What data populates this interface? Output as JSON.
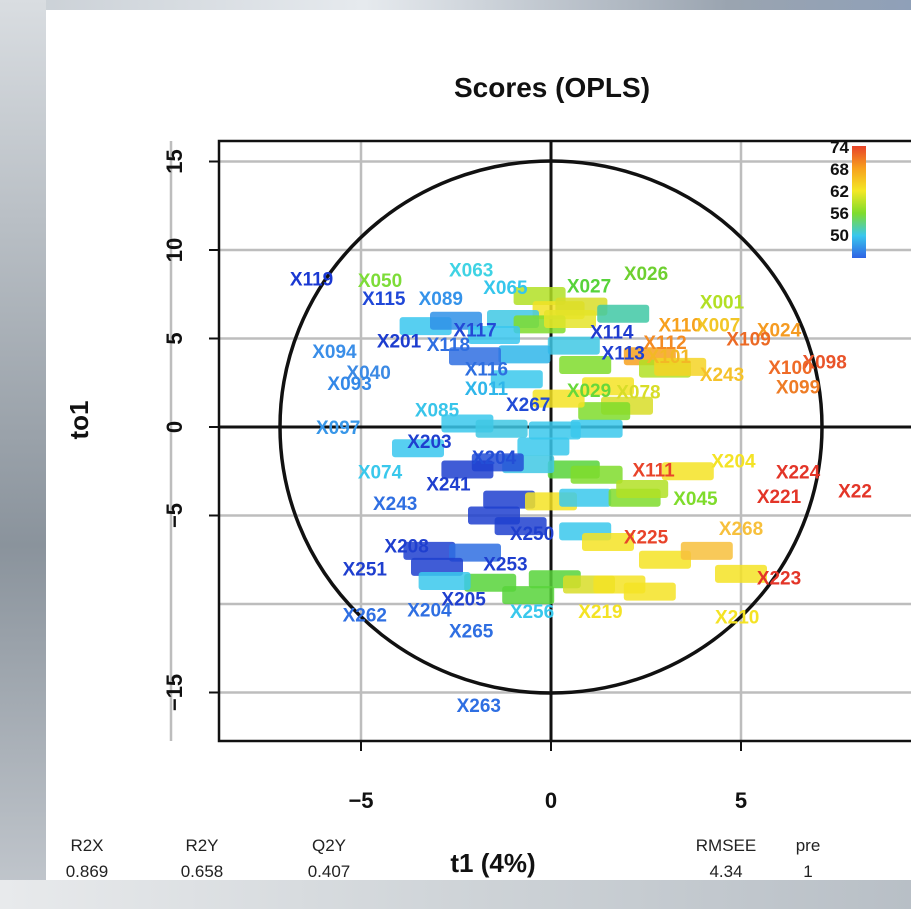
{
  "chart_data": {
    "type": "scatter",
    "title": "Scores (OPLS)",
    "xlabel": "t1 (4%)",
    "ylabel": "to1",
    "xlim": [
      -8.3,
      8.3
    ],
    "ylim": [
      -16.7,
      15.3
    ],
    "xticks": [
      "−5",
      "0",
      "5"
    ],
    "yticks": [
      "15",
      "10",
      "5",
      "0",
      "−5",
      "−15"
    ],
    "grid": true,
    "ellipse": true,
    "colorbar": {
      "position": "top-right",
      "labels": [
        "74",
        "68",
        "62",
        "56",
        "50"
      ],
      "colors": [
        "#e8432a",
        "#f7a11e",
        "#f4e825",
        "#7fdc2c",
        "#39c7ee",
        "#2f63e4"
      ]
    },
    "points": [
      {
        "label": "X119",
        "x": -6.3,
        "y": 8.4,
        "c": "#1a38d2"
      },
      {
        "label": "X050",
        "x": -4.5,
        "y": 8.3,
        "c": "#7ddc38"
      },
      {
        "label": "X063",
        "x": -2.1,
        "y": 8.9,
        "c": "#3fd3e4"
      },
      {
        "label": "X027",
        "x": 1.0,
        "y": 8.0,
        "c": "#57d33a"
      },
      {
        "label": "X026",
        "x": 2.5,
        "y": 8.7,
        "c": "#6ed030"
      },
      {
        "label": "X001",
        "x": 4.5,
        "y": 7.1,
        "c": "#b2e024"
      },
      {
        "label": "X115",
        "x": -4.4,
        "y": 7.3,
        "c": "#1f47d8"
      },
      {
        "label": "X089",
        "x": -2.9,
        "y": 7.3,
        "c": "#3593ea"
      },
      {
        "label": "X065",
        "x": -1.2,
        "y": 7.9,
        "c": "#35c6ec"
      },
      {
        "label": "X201",
        "x": -4.0,
        "y": 4.9,
        "c": "#1c3ccf"
      },
      {
        "label": "X117",
        "x": -2.0,
        "y": 5.5,
        "c": "#244ad6"
      },
      {
        "label": "X118",
        "x": -2.7,
        "y": 4.7,
        "c": "#2f6fe2"
      },
      {
        "label": "X094",
        "x": -5.7,
        "y": 4.3,
        "c": "#3a8ee8"
      },
      {
        "label": "X040",
        "x": -4.8,
        "y": 3.1,
        "c": "#3c8ae4"
      },
      {
        "label": "X093",
        "x": -5.3,
        "y": 2.5,
        "c": "#3388e8"
      },
      {
        "label": "X114",
        "x": 1.6,
        "y": 5.4,
        "c": "#1f3bd0"
      },
      {
        "label": "X113",
        "x": 1.9,
        "y": 4.2,
        "c": "#2140d2"
      },
      {
        "label": "X116",
        "x": -1.7,
        "y": 3.3,
        "c": "#2e6fe0"
      },
      {
        "label": "X110",
        "x": 3.4,
        "y": 5.8,
        "c": "#f7a11e"
      },
      {
        "label": "X007",
        "x": 4.4,
        "y": 5.8,
        "c": "#f2c627"
      },
      {
        "label": "X112",
        "x": 3.0,
        "y": 4.8,
        "c": "#f48b22"
      },
      {
        "label": "X024",
        "x": 6.0,
        "y": 5.5,
        "c": "#f59b21"
      },
      {
        "label": "X109",
        "x": 5.2,
        "y": 5.0,
        "c": "#ec6a25"
      },
      {
        "label": "X101",
        "x": 3.1,
        "y": 4.0,
        "c": "#f3b825"
      },
      {
        "label": "X098",
        "x": 7.2,
        "y": 3.7,
        "c": "#e9542a"
      },
      {
        "label": "X100",
        "x": 6.3,
        "y": 3.4,
        "c": "#ef6b27"
      },
      {
        "label": "X243",
        "x": 4.5,
        "y": 3.0,
        "c": "#f5c22a"
      },
      {
        "label": "X099",
        "x": 6.5,
        "y": 2.3,
        "c": "#ee7c25"
      },
      {
        "label": "X029",
        "x": 1.0,
        "y": 2.1,
        "c": "#67d83a"
      },
      {
        "label": "X078",
        "x": 2.3,
        "y": 2.0,
        "c": "#d8dd28"
      },
      {
        "label": "X011",
        "x": -1.7,
        "y": 2.2,
        "c": "#2fb6ea"
      },
      {
        "label": "X267",
        "x": -0.6,
        "y": 1.3,
        "c": "#214bd6"
      },
      {
        "label": "X085",
        "x": -3.0,
        "y": 1.0,
        "c": "#39c5ea"
      },
      {
        "label": "X097",
        "x": -5.6,
        "y": 0.0,
        "c": "#3796e8"
      },
      {
        "label": "X203",
        "x": -3.2,
        "y": -0.8,
        "c": "#1f3fcf"
      },
      {
        "label": "X241",
        "x": -2.7,
        "y": -3.2,
        "c": "#1f3fcf"
      },
      {
        "label": "X204",
        "x": -1.5,
        "y": -1.7,
        "c": "#234ed6"
      },
      {
        "label": "X074",
        "x": -4.5,
        "y": -2.5,
        "c": "#39c8ec"
      },
      {
        "label": "X243b",
        "x": -4.1,
        "y": -4.3,
        "c": "#2f6fe2"
      },
      {
        "label": "X111",
        "x": 2.7,
        "y": -2.4,
        "c": "#e8432a"
      },
      {
        "label": "X204b",
        "x": 4.8,
        "y": -1.9,
        "c": "#f4e325"
      },
      {
        "label": "X224",
        "x": 6.5,
        "y": -2.5,
        "c": "#e33528"
      },
      {
        "label": "X221",
        "x": 6.0,
        "y": -3.9,
        "c": "#e33528"
      },
      {
        "label": "X22",
        "x": 8.0,
        "y": -3.6,
        "c": "#e33528"
      },
      {
        "label": "X045",
        "x": 3.8,
        "y": -4.0,
        "c": "#7fdc2c"
      },
      {
        "label": "X250",
        "x": -0.5,
        "y": -6.0,
        "c": "#1f3fcf"
      },
      {
        "label": "X225",
        "x": 2.5,
        "y": -6.2,
        "c": "#e8432a"
      },
      {
        "label": "X268",
        "x": 5.0,
        "y": -5.7,
        "c": "#f7c03c"
      },
      {
        "label": "X208",
        "x": -3.8,
        "y": -6.7,
        "c": "#1f3fcf"
      },
      {
        "label": "X253",
        "x": -1.2,
        "y": -7.7,
        "c": "#1f3fcf"
      },
      {
        "label": "X251",
        "x": -4.9,
        "y": -8.0,
        "c": "#1f3fcf"
      },
      {
        "label": "X223",
        "x": 6.0,
        "y": -8.5,
        "c": "#e33528"
      },
      {
        "label": "X205",
        "x": -2.3,
        "y": -9.7,
        "c": "#1f3fcf"
      },
      {
        "label": "X262",
        "x": -4.9,
        "y": -10.6,
        "c": "#2f6fe2"
      },
      {
        "label": "X204c",
        "x": -3.2,
        "y": -10.3,
        "c": "#2f6fe2"
      },
      {
        "label": "X256",
        "x": -0.5,
        "y": -10.4,
        "c": "#39c8ec"
      },
      {
        "label": "X219",
        "x": 1.3,
        "y": -10.4,
        "c": "#f4e325"
      },
      {
        "label": "X210",
        "x": 4.9,
        "y": -10.7,
        "c": "#f4e325"
      },
      {
        "label": "X265",
        "x": -2.1,
        "y": -11.5,
        "c": "#2f6fe2"
      },
      {
        "label": "X263",
        "x": -1.9,
        "y": -15.7,
        "c": "#2f6fe2"
      }
    ],
    "cloud": [
      [
        -0.3,
        7.4,
        "#b2e024"
      ],
      [
        0.2,
        6.6,
        "#f2e325"
      ],
      [
        0.8,
        6.8,
        "#d8dd28"
      ],
      [
        1.9,
        6.4,
        "#3fc8a4"
      ],
      [
        -1.0,
        6.1,
        "#3fc8e4"
      ],
      [
        -0.3,
        5.8,
        "#7fdc2c"
      ],
      [
        0.5,
        6.1,
        "#e5e428"
      ],
      [
        -3.3,
        5.7,
        "#39c7ee"
      ],
      [
        -2.5,
        6.0,
        "#2f90e8"
      ],
      [
        0.6,
        4.6,
        "#3fc8e4"
      ],
      [
        -0.7,
        4.1,
        "#2fb6ea"
      ],
      [
        2.6,
        4.0,
        "#f7a11e"
      ],
      [
        3.0,
        3.3,
        "#b2e024"
      ],
      [
        3.4,
        3.4,
        "#f4d325"
      ],
      [
        -0.9,
        2.7,
        "#39c8ec"
      ],
      [
        2.0,
        1.2,
        "#d8dd28"
      ],
      [
        1.4,
        0.9,
        "#7fdc2c"
      ],
      [
        0.2,
        1.6,
        "#f4e325"
      ],
      [
        -2.2,
        0.2,
        "#39c8ec"
      ],
      [
        -1.3,
        -0.1,
        "#3fc8e4"
      ],
      [
        0.1,
        -0.2,
        "#39c8ec"
      ],
      [
        1.2,
        -0.1,
        "#39c8ec"
      ],
      [
        -0.2,
        -1.1,
        "#39c8ec"
      ],
      [
        0.6,
        -2.4,
        "#57d33a"
      ],
      [
        1.2,
        -2.7,
        "#7fdc2c"
      ],
      [
        -0.6,
        -2.1,
        "#3fc8e4"
      ],
      [
        -1.1,
        -4.1,
        "#1f3fcf"
      ],
      [
        0.0,
        -4.2,
        "#f4e325"
      ],
      [
        0.9,
        -4.0,
        "#39c8ec"
      ],
      [
        2.2,
        -4.0,
        "#7fdc2c"
      ],
      [
        -1.5,
        -5.0,
        "#1f3fcf"
      ],
      [
        -0.8,
        -5.6,
        "#1f3fcf"
      ],
      [
        0.9,
        -5.9,
        "#39c8ec"
      ],
      [
        1.5,
        -6.5,
        "#f4e325"
      ],
      [
        3.0,
        -7.5,
        "#f4e325"
      ],
      [
        -3.2,
        -7.0,
        "#1f3fcf"
      ],
      [
        -2.0,
        -7.1,
        "#2f6fe2"
      ],
      [
        -3.0,
        -7.9,
        "#1f3fcf"
      ],
      [
        -1.6,
        -8.8,
        "#57d33a"
      ],
      [
        0.1,
        -8.6,
        "#57d33a"
      ],
      [
        1.0,
        -8.9,
        "#d8dd28"
      ],
      [
        1.8,
        -8.9,
        "#f4e325"
      ],
      [
        2.6,
        -9.3,
        "#f4e325"
      ],
      [
        5.0,
        -8.3,
        "#f4e325"
      ],
      [
        4.1,
        -7.0,
        "#f7c03c"
      ],
      [
        -0.6,
        -9.5,
        "#57d33a"
      ],
      [
        -2.8,
        -8.7,
        "#39c8ec"
      ],
      [
        -1.4,
        -2.0,
        "#234ed6"
      ],
      [
        -2.2,
        -2.4,
        "#1f3fcf"
      ],
      [
        -3.5,
        -1.2,
        "#39c7ee"
      ],
      [
        -2.0,
        4.0,
        "#2f6fe2"
      ],
      [
        -1.5,
        5.2,
        "#39c7ee"
      ],
      [
        0.9,
        3.5,
        "#7fdc2c"
      ],
      [
        1.5,
        2.3,
        "#f4e325"
      ],
      [
        3.6,
        -2.5,
        "#f4e325"
      ],
      [
        2.4,
        -3.5,
        "#b2e024"
      ]
    ],
    "stats": [
      {
        "name": "R2X",
        "value": "0.869"
      },
      {
        "name": "R2Y",
        "value": "0.658"
      },
      {
        "name": "Q2Y",
        "value": "0.407"
      },
      {
        "name": "RMSEE",
        "value": "4.34"
      },
      {
        "name": "pre",
        "value": "1"
      }
    ]
  }
}
